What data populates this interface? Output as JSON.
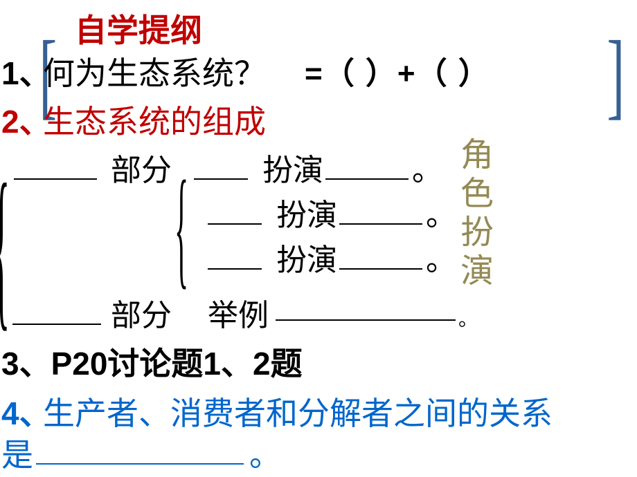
{
  "title": "自学提纲",
  "q1": {
    "num": "1、",
    "text": "何为生态系统？",
    "eq": "=（   ）+（   ）"
  },
  "q2": {
    "num": "2、",
    "text": "生态系统的组成"
  },
  "part1_label": "部分",
  "role_verb": "扮演",
  "part2_label": "部分",
  "example_label": "举例",
  "period": "。",
  "q3": "3、P20讨论题1、2题",
  "q4": {
    "num": "4、",
    "text1": "生产者、消费者和分解者之间的关系",
    "text2": "是",
    "end": "。"
  },
  "vertical": "角色扮演",
  "colors": {
    "red": "#c00000",
    "blue": "#0066cc",
    "olive": "#948a54",
    "bracket": "#376092",
    "black": "#000000"
  }
}
